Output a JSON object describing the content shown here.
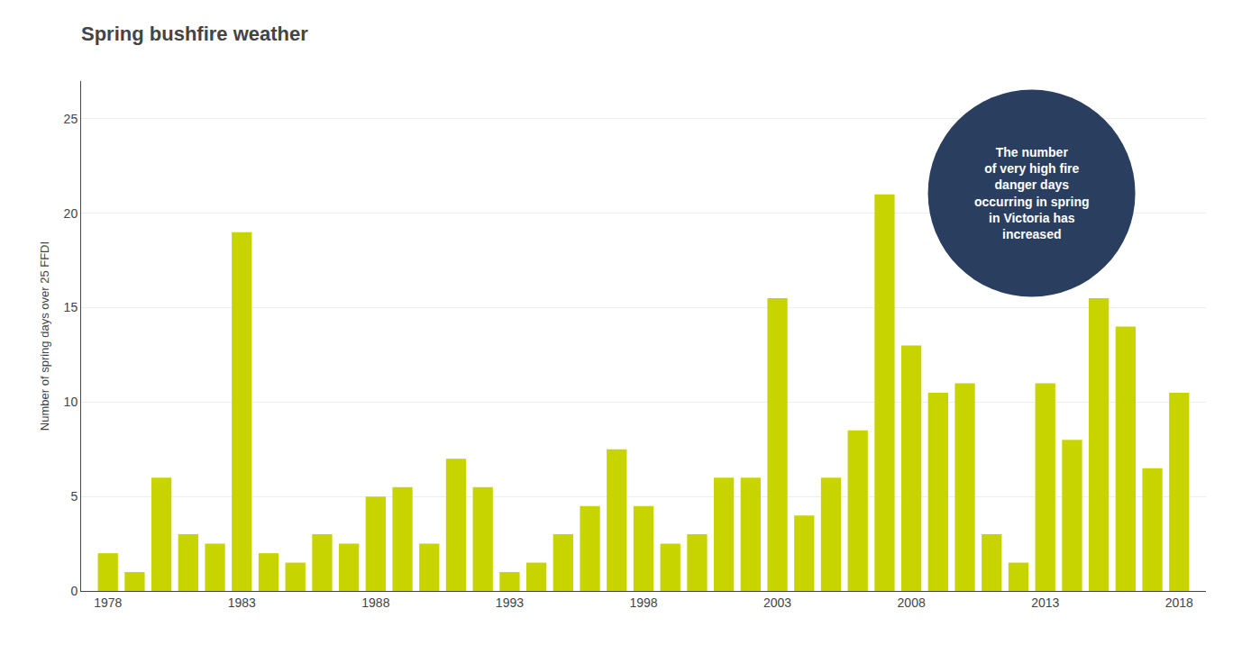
{
  "chart_data": {
    "type": "bar",
    "title": "Spring bushfire weather",
    "ylabel": "Number of spring days over 25 FFDI",
    "x": [
      1978,
      1979,
      1980,
      1981,
      1982,
      1983,
      1984,
      1985,
      1986,
      1987,
      1988,
      1989,
      1990,
      1991,
      1992,
      1993,
      1994,
      1995,
      1996,
      1997,
      1998,
      1999,
      2000,
      2001,
      2002,
      2003,
      2004,
      2005,
      2006,
      2007,
      2008,
      2009,
      2010,
      2011,
      2012,
      2013,
      2014,
      2015,
      2016,
      2017,
      2018
    ],
    "values": [
      2,
      1,
      6,
      3,
      2.5,
      19,
      2,
      1.5,
      3,
      2.5,
      5,
      5.5,
      2.5,
      7,
      5.5,
      1,
      1.5,
      3,
      4.5,
      7.5,
      4.5,
      2.5,
      3,
      6,
      6,
      15.5,
      4,
      6,
      8.5,
      21,
      13,
      10.5,
      11,
      3,
      1.5,
      11,
      8,
      15.5,
      14,
      6.5,
      10.5
    ],
    "color": "#c8d400",
    "xlim": [
      1977,
      2019
    ],
    "xticks": [
      1978,
      1983,
      1988,
      1993,
      1998,
      2003,
      2008,
      2013,
      2018
    ],
    "ylim": [
      0,
      27
    ],
    "yticks": [
      0,
      5,
      10,
      15,
      20,
      25
    ],
    "grid": true,
    "annotations": [
      "The number\nof very high fire\ndanger days\noccurring in spring\nin Victoria has\nincreased"
    ]
  }
}
